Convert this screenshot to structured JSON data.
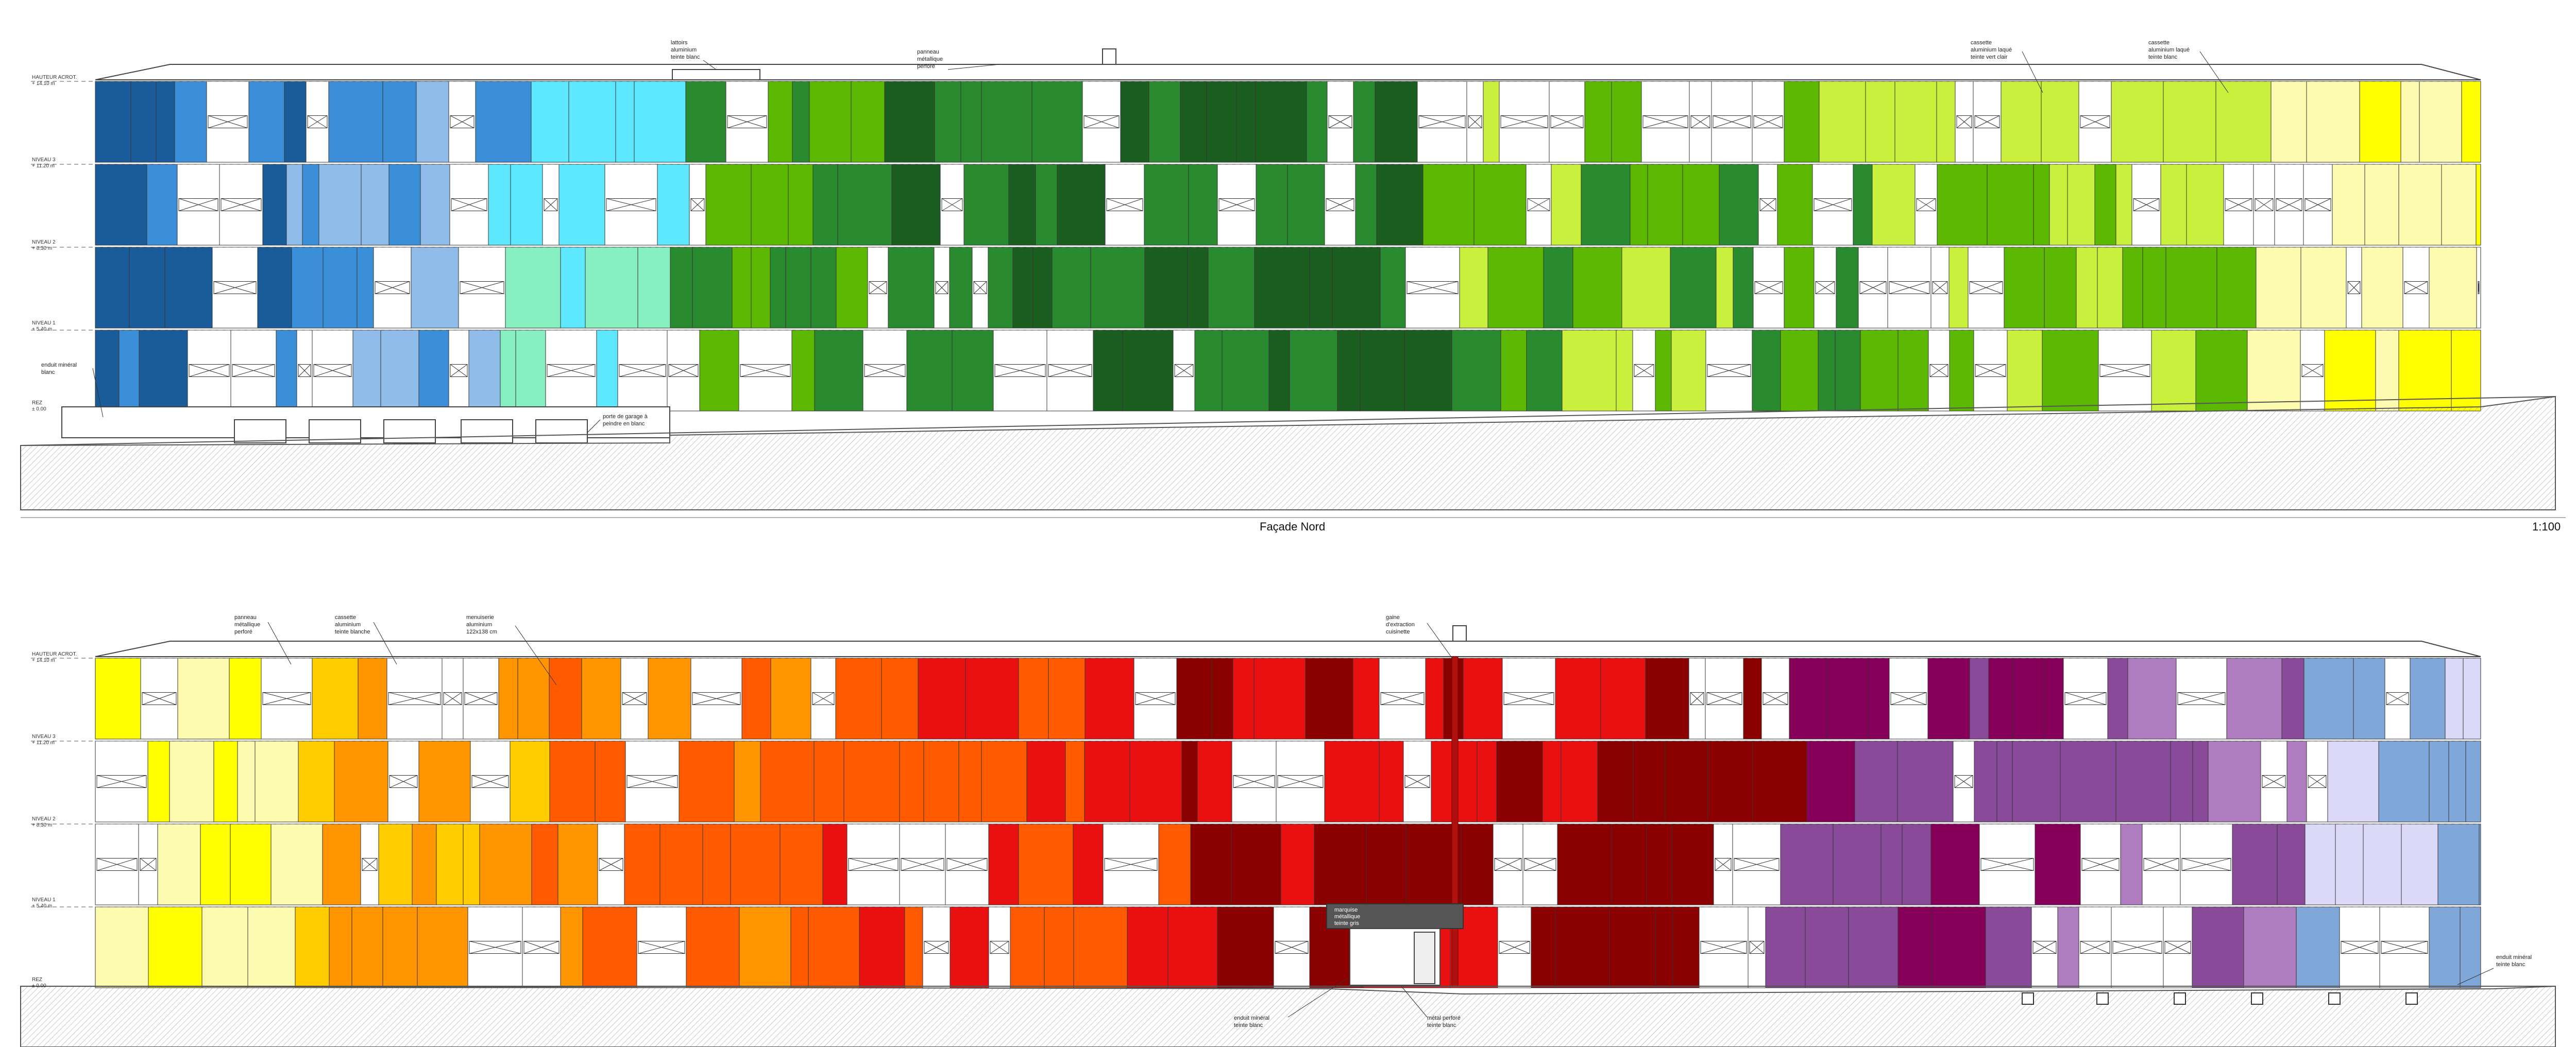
{
  "north": {
    "title": "Façade Nord",
    "scale": "1:100",
    "level_labels": [
      {
        "name": "HAUTEUR ACROT.",
        "value": "+ 14.10 m"
      },
      {
        "name": "NIVEAU 3",
        "value": "+ 11.20 m"
      },
      {
        "name": "NIVEAU 2",
        "value": "+ 8.30 m"
      },
      {
        "name": "NIVEAU 1",
        "value": "+ 5.40 m"
      },
      {
        "name": "REZ",
        "value": "± 0.00"
      }
    ],
    "annotations": [
      {
        "lines": [
          "enduit minéral",
          "blanc"
        ]
      },
      {
        "lines": [
          "porte de garage à",
          "peindre en blanc"
        ]
      },
      {
        "lines": [
          "lattoirs",
          "aluminium",
          "teinte blanc"
        ]
      },
      {
        "lines": [
          "panneau",
          "métallique",
          "perforé"
        ]
      },
      {
        "lines": [
          "cassette",
          "aluminium laqué",
          "teinte vert clair"
        ]
      },
      {
        "lines": [
          "cassette",
          "aluminium laqué",
          "teinte blanc"
        ]
      }
    ],
    "palette": [
      "#1a5c9a",
      "#3b8fd8",
      "#8fbce8",
      "#5ee8ff",
      "#86f0c0",
      "#5cb800",
      "#2a8a30",
      "#1b5e20",
      "#c8f03c",
      "#ffff00",
      "#fdfbb0"
    ]
  },
  "south": {
    "level_labels": [
      {
        "name": "HAUTEUR ACROT.",
        "value": "+ 14.10 m"
      },
      {
        "name": "NIVEAU 3",
        "value": "+ 11.20 m"
      },
      {
        "name": "NIVEAU 2",
        "value": "+ 8.30 m"
      },
      {
        "name": "NIVEAU 1",
        "value": "+ 5.40 m"
      },
      {
        "name": "REZ",
        "value": "± 0.00"
      }
    ],
    "annotations": [
      {
        "lines": [
          "panneau",
          "métallique",
          "perforé"
        ]
      },
      {
        "lines": [
          "cassette",
          "aluminium",
          "teinte blanche"
        ]
      },
      {
        "lines": [
          "menuiserie",
          "aluminium",
          "122x138 cm"
        ]
      },
      {
        "lines": [
          "gaine",
          "d'extraction",
          "cuisinette"
        ]
      },
      {
        "lines": [
          "marquise",
          "métallique",
          "teinte gris"
        ]
      },
      {
        "lines": [
          "enduit minéral",
          "teinte blanc"
        ]
      },
      {
        "lines": [
          "enduit minéral",
          "teinte blanc"
        ]
      },
      {
        "lines": [
          "métal perforé",
          "teinte blanc"
        ]
      }
    ],
    "palette": [
      "#fdfbb0",
      "#ffff00",
      "#ffcc00",
      "#ff9500",
      "#ff5a00",
      "#e81010",
      "#8b0000",
      "#86005a",
      "#8a4a9a",
      "#b07cc0",
      "#dcd8f8",
      "#7fa8d8"
    ]
  }
}
